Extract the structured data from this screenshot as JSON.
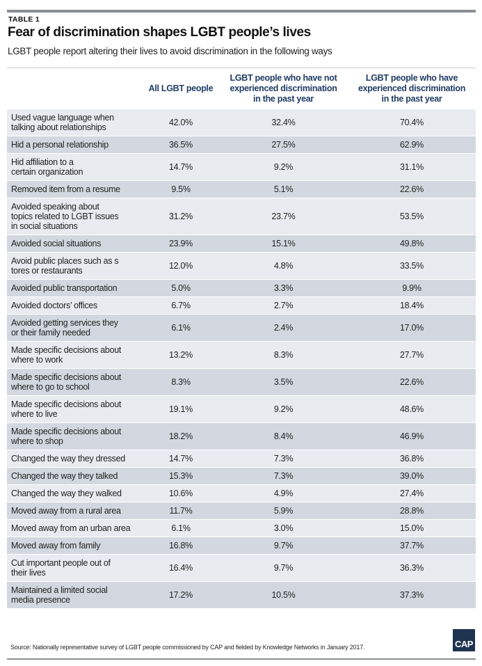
{
  "kicker": "TABLE 1",
  "title": "Fear of discrimination shapes LGBT people’s lives",
  "subtitle": "LGBT people report altering their lives to avoid discrimination in the following ways",
  "source": "Source: Nationally representative survey of LGBT people commissioned by CAP and fielded by Knowledge Networks in January 2017.",
  "logo_text": "CAP",
  "colors": {
    "header_text": "#1f3b63",
    "row_light": "#e8ebef",
    "row_dark": "#d3d8e0",
    "logo_bg": "#1d3350"
  },
  "chart_data": {
    "type": "table",
    "columns": [
      "",
      "All LGBT people",
      "LGBT people who have not\nexperienced discrimination\nin the past year",
      "LGBT people who have\nexperienced discrimination\nin the past year"
    ],
    "rows": [
      {
        "label": "Used vague language when\ntalking about relationships",
        "values": [
          "42.0%",
          "32.4%",
          "70.4%"
        ]
      },
      {
        "label": "Hid a personal relationship",
        "values": [
          "36.5%",
          "27.5%",
          "62.9%"
        ]
      },
      {
        "label": "Hid affiliation to a\ncertain organization",
        "values": [
          "14.7%",
          "9.2%",
          "31.1%"
        ]
      },
      {
        "label": "Removed item from a resume",
        "values": [
          "9.5%",
          "5.1%",
          "22.6%"
        ]
      },
      {
        "label": "Avoided speaking about\ntopics related to LGBT issues\nin social situations",
        "values": [
          "31.2%",
          "23.7%",
          "53.5%"
        ]
      },
      {
        "label": "Avoided social situations",
        "values": [
          "23.9%",
          "15.1%",
          "49.8%"
        ]
      },
      {
        "label": "Avoid public places such as s\ntores or restaurants",
        "values": [
          "12.0%",
          "4.8%",
          "33.5%"
        ]
      },
      {
        "label": "Avoided public transportation",
        "values": [
          "5.0%",
          "3.3%",
          "9.9%"
        ]
      },
      {
        "label": "Avoided doctors’ offices",
        "values": [
          "6.7%",
          "2.7%",
          "18.4%"
        ]
      },
      {
        "label": "Avoided getting services they\nor their family needed",
        "values": [
          "6.1%",
          "2.4%",
          "17.0%"
        ]
      },
      {
        "label": "Made specific decisions about\nwhere to work",
        "values": [
          "13.2%",
          "8.3%",
          "27.7%"
        ]
      },
      {
        "label": "Made specific decisions about\nwhere to go to school",
        "values": [
          "8.3%",
          "3.5%",
          "22.6%"
        ]
      },
      {
        "label": "Made specific decisions about\nwhere to live",
        "values": [
          "19.1%",
          "9.2%",
          "48.6%"
        ]
      },
      {
        "label": "Made specific decisions about\nwhere to shop",
        "values": [
          "18.2%",
          "8.4%",
          "46.9%"
        ]
      },
      {
        "label": "Changed the way they dressed",
        "values": [
          "14.7%",
          "7.3%",
          "36.8%"
        ]
      },
      {
        "label": "Changed the way they talked",
        "values": [
          "15.3%",
          "7.3%",
          "39.0%"
        ]
      },
      {
        "label": "Changed the way they walked",
        "values": [
          "10.6%",
          "4.9%",
          "27.4%"
        ]
      },
      {
        "label": "Moved away from a rural area",
        "values": [
          "11.7%",
          "5.9%",
          "28.8%"
        ]
      },
      {
        "label": "Moved away from an urban area",
        "values": [
          "6.1%",
          "3.0%",
          "15.0%"
        ]
      },
      {
        "label": "Moved away from family",
        "values": [
          "16.8%",
          "9.7%",
          "37.7%"
        ]
      },
      {
        "label": "Cut important people out of\ntheir lives",
        "values": [
          "16.4%",
          "9.7%",
          "36.3%"
        ]
      },
      {
        "label": "Maintained a limited social\n media presence",
        "values": [
          "17.2%",
          "10.5%",
          "37.3%"
        ]
      }
    ]
  }
}
